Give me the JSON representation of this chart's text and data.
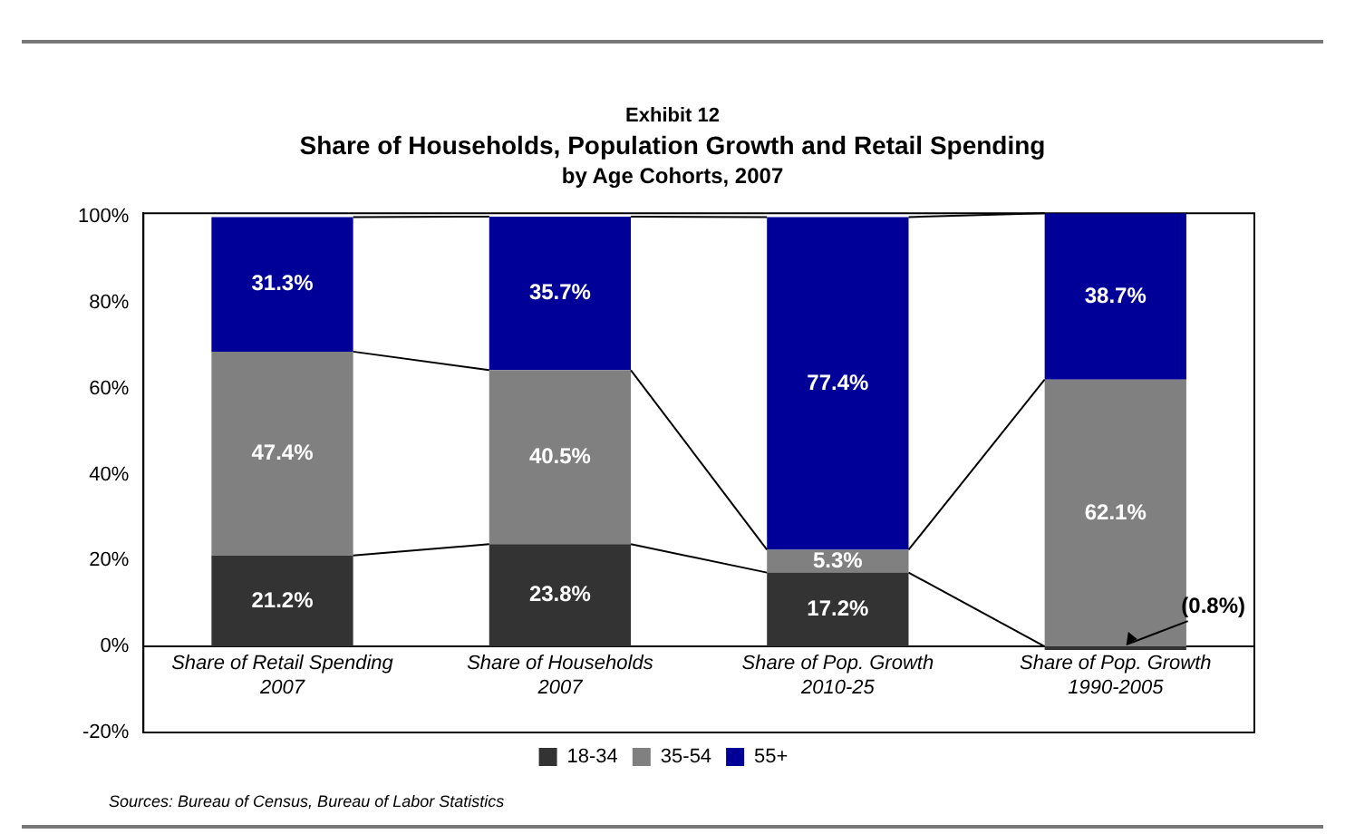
{
  "chart_data": {
    "type": "bar",
    "stacked": true,
    "annotations": [
      "Exhibit 12",
      "Sources: Bureau of Census, Bureau of Labor Statistics"
    ],
    "title": "Share of Households, Population Growth and Retail Spending",
    "subtitle": "by Age Cohorts, 2007",
    "categories": [
      "Share of Retail Spending\n2007",
      "Share of Households\n2007",
      "Share of Pop. Growth\n2010-25",
      "Share of Pop. Growth\n1990-2005"
    ],
    "series": [
      {
        "name": "18-34",
        "color": "#333333",
        "values": [
          21.2,
          23.8,
          17.2,
          -0.8
        ],
        "value_labels": [
          "21.2%",
          "23.8%",
          "17.2%",
          "(0.8%)"
        ]
      },
      {
        "name": "35-54",
        "color": "#808080",
        "values": [
          47.4,
          40.5,
          5.3,
          62.1
        ],
        "value_labels": [
          "47.4%",
          "40.5%",
          "5.3%",
          "62.1%"
        ]
      },
      {
        "name": "55+",
        "color": "#000099",
        "values": [
          31.3,
          35.7,
          77.4,
          38.7
        ],
        "value_labels": [
          "31.3%",
          "35.7%",
          "77.4%",
          "38.7%"
        ]
      }
    ],
    "ylim": [
      -20,
      100.8
    ],
    "yticks": [
      {
        "value": -20,
        "label": "-20%"
      },
      {
        "value": 0,
        "label": "0%"
      },
      {
        "value": 20,
        "label": "20%"
      },
      {
        "value": 40,
        "label": "40%"
      },
      {
        "value": 60,
        "label": "60%"
      },
      {
        "value": 80,
        "label": "80%"
      },
      {
        "value": 100,
        "label": "100%"
      }
    ],
    "grid": false,
    "legend": "bottom"
  }
}
